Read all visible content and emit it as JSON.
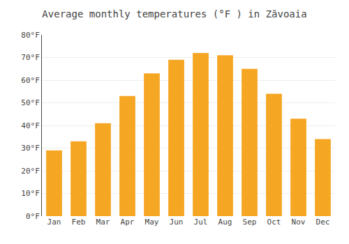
{
  "chart_data": {
    "type": "bar",
    "title": "Average monthly temperatures (°F ) in Zăvoaia",
    "categories": [
      "Jan",
      "Feb",
      "Mar",
      "Apr",
      "May",
      "Jun",
      "Jul",
      "Aug",
      "Sep",
      "Oct",
      "Nov",
      "Dec"
    ],
    "values": [
      29,
      33,
      41,
      53,
      63,
      69,
      72,
      71,
      65,
      54,
      43,
      34
    ],
    "color": "#F5A623",
    "ylim": [
      0,
      80
    ],
    "yticks": [
      {
        "value": 0,
        "label": "0°F"
      },
      {
        "value": 10,
        "label": "10°F"
      },
      {
        "value": 20,
        "label": "20°F"
      },
      {
        "value": 30,
        "label": "30°F"
      },
      {
        "value": 40,
        "label": "40°F"
      },
      {
        "value": 50,
        "label": "50°F"
      },
      {
        "value": 60,
        "label": "60°F"
      },
      {
        "value": 70,
        "label": "70°F"
      },
      {
        "value": 80,
        "label": "80°F"
      }
    ],
    "grid": true
  }
}
